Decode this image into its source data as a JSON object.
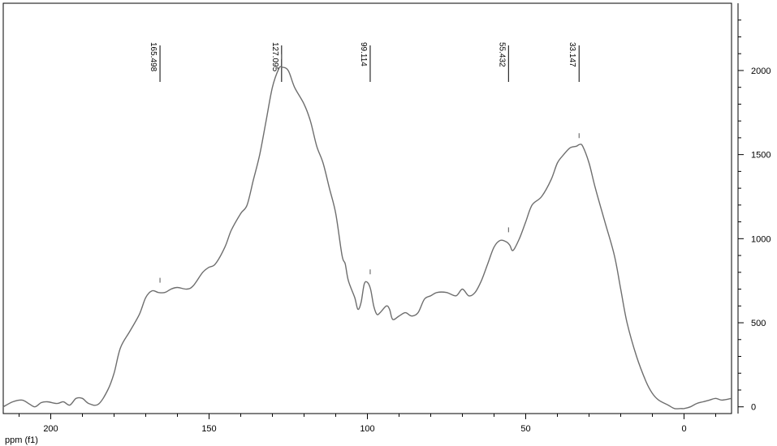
{
  "chart_data": {
    "type": "line",
    "xlabel": "ppm (f1)",
    "ylabel": "",
    "title": "",
    "xlim": [
      215,
      -15
    ],
    "ylim": [
      -40,
      2400
    ],
    "x_reversed": true,
    "x_ticks": [
      200,
      150,
      100,
      50,
      0
    ],
    "y_ticks": [
      0,
      500,
      1000,
      1500,
      2000
    ],
    "grid": false,
    "peaks": [
      {
        "label": "165.498",
        "x": 165.498,
        "y": 690
      },
      {
        "label": "127.095",
        "x": 127.095,
        "y": 2020
      },
      {
        "label": "99.114",
        "x": 99.114,
        "y": 740
      },
      {
        "label": "55.432",
        "x": 55.432,
        "y": 990
      },
      {
        "label": "33.147",
        "x": 33.147,
        "y": 1550
      }
    ],
    "series": [
      {
        "x": [
          215,
          212,
          209,
          207,
          205,
          203,
          201,
          198,
          196,
          194,
          192,
          190,
          188,
          185,
          182,
          180,
          178,
          175,
          172,
          170,
          168,
          166,
          164,
          162,
          160,
          157,
          155,
          152,
          150,
          148,
          145,
          143,
          140,
          138,
          136,
          134,
          132,
          130,
          128,
          127,
          125,
          123,
          120,
          118,
          116,
          114,
          112,
          110,
          108,
          107,
          106,
          104,
          103,
          102,
          101,
          100,
          99,
          98,
          97,
          96,
          94,
          93,
          92,
          90,
          88,
          86,
          84,
          82,
          80,
          78,
          75,
          72,
          70,
          68,
          66,
          64,
          62,
          60,
          58,
          56,
          55,
          54,
          52,
          50,
          48,
          45,
          42,
          40,
          38,
          36,
          34,
          33,
          32,
          30,
          28,
          25,
          22,
          20,
          18,
          15,
          12,
          10,
          8,
          5,
          3,
          1,
          0,
          -2,
          -4,
          -6,
          -8,
          -10,
          -12,
          -15
        ],
        "y": [
          0,
          30,
          40,
          20,
          0,
          25,
          30,
          20,
          30,
          10,
          50,
          50,
          20,
          15,
          100,
          200,
          350,
          450,
          550,
          650,
          690,
          680,
          680,
          700,
          710,
          700,
          720,
          800,
          830,
          850,
          950,
          1050,
          1150,
          1200,
          1350,
          1500,
          1700,
          1900,
          2010,
          2020,
          2000,
          1900,
          1800,
          1700,
          1550,
          1450,
          1300,
          1150,
          900,
          850,
          750,
          650,
          580,
          620,
          730,
          740,
          700,
          600,
          550,
          560,
          600,
          580,
          520,
          540,
          560,
          540,
          560,
          640,
          660,
          680,
          680,
          660,
          700,
          660,
          680,
          750,
          850,
          950,
          990,
          980,
          960,
          930,
          1000,
          1100,
          1200,
          1250,
          1350,
          1450,
          1500,
          1540,
          1550,
          1560,
          1550,
          1450,
          1300,
          1100,
          900,
          700,
          500,
          300,
          150,
          80,
          40,
          10,
          -10,
          -10,
          -10,
          0,
          20,
          30,
          40,
          50,
          40,
          50
        ]
      }
    ]
  }
}
